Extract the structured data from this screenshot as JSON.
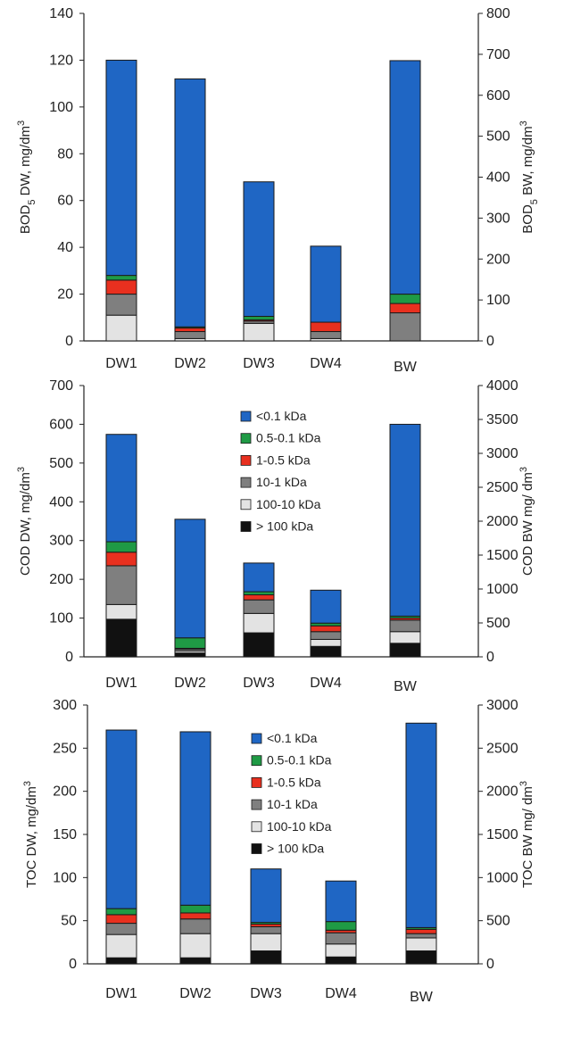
{
  "colors": {
    "gt100": "#111111",
    "k100_10": "#e3e3e3",
    "k10_1": "#7f7f7f",
    "k1_05": "#e8301f",
    "k05_01": "#1f9a45",
    "lt01": "#1f66c4",
    "outline": "#1a1a1a"
  },
  "legend_labels": [
    "<0.1 kDa",
    "0.5-0.1 kDa",
    "1-0.5 kDa",
    "10-1 kDa",
    "100-10 kDa",
    "> 100 kDa"
  ],
  "chart_data": [
    {
      "type": "bar",
      "stacked": true,
      "title": "",
      "categories": [
        "DW1",
        "DW2",
        "DW3",
        "DW4",
        "BW"
      ],
      "ylabel_left": {
        "main": "BOD",
        "sub": "5",
        "rest": " DW, mg/dm",
        "sup": "3"
      },
      "ylabel_right": {
        "main": "BOD",
        "sub": "5",
        "rest": " BW, mg/dm",
        "sup": "3"
      },
      "ylim_left": [
        0,
        140
      ],
      "yticks_left": [
        0,
        20,
        40,
        60,
        80,
        100,
        120,
        140
      ],
      "ylim_right": [
        0,
        800
      ],
      "yticks_right": [
        0,
        100,
        200,
        300,
        400,
        500,
        600,
        700,
        800
      ],
      "legend": false,
      "series": [
        {
          "key": "gt100",
          "values": [
            0,
            0,
            0,
            0,
            0
          ]
        },
        {
          "key": "k100_10",
          "values": [
            11,
            1,
            7.5,
            1,
            0
          ]
        },
        {
          "key": "k10_1",
          "values": [
            9,
            3,
            1,
            3,
            12
          ]
        },
        {
          "key": "k1_05",
          "values": [
            6,
            1.5,
            0.5,
            4,
            4
          ]
        },
        {
          "key": "k05_01",
          "values": [
            2,
            0.5,
            1.5,
            0,
            4
          ]
        },
        {
          "key": "lt01",
          "values": [
            92,
            106,
            57.5,
            32.5,
            99.8
          ]
        }
      ]
    },
    {
      "type": "bar",
      "stacked": true,
      "title": "",
      "categories": [
        "DW1",
        "DW2",
        "DW3",
        "DW4",
        "BW"
      ],
      "ylabel_left": {
        "main": "COD DW, mg/dm",
        "sup": "3"
      },
      "ylabel_right": {
        "main": "COD BW mg/ dm",
        "sup": "3"
      },
      "ylim_left": [
        0,
        700
      ],
      "yticks_left": [
        0,
        100,
        200,
        300,
        400,
        500,
        600,
        700
      ],
      "ylim_right": [
        0,
        4000
      ],
      "yticks_right": [
        0,
        500,
        1000,
        1500,
        2000,
        2500,
        3000,
        3500,
        4000
      ],
      "legend": true,
      "series": [
        {
          "key": "gt100",
          "values": [
            97,
            10,
            62,
            27,
            35
          ]
        },
        {
          "key": "k100_10",
          "values": [
            38,
            5,
            50,
            18,
            30
          ]
        },
        {
          "key": "k10_1",
          "values": [
            100,
            5,
            35,
            20,
            30
          ]
        },
        {
          "key": "k1_05",
          "values": [
            35,
            2,
            13,
            15,
            5
          ]
        },
        {
          "key": "k05_01",
          "values": [
            27,
            27,
            8,
            7,
            5
          ]
        },
        {
          "key": "lt01",
          "values": [
            277,
            306,
            74,
            85,
            495
          ]
        }
      ]
    },
    {
      "type": "bar",
      "stacked": true,
      "title": "",
      "categories": [
        "DW1",
        "DW2",
        "DW3",
        "DW4",
        "BW"
      ],
      "ylabel_left": {
        "main": "TOC DW, mg/dm",
        "sup": "3"
      },
      "ylabel_right": {
        "main": "TOC BW mg/ dm",
        "sup": "3"
      },
      "ylim_left": [
        0,
        300
      ],
      "yticks_left": [
        0,
        50,
        100,
        150,
        200,
        250,
        300
      ],
      "ylim_right": [
        0,
        3000
      ],
      "yticks_right": [
        0,
        500,
        1000,
        1500,
        2000,
        2500,
        3000
      ],
      "legend": true,
      "series": [
        {
          "key": "gt100",
          "values": [
            7,
            7,
            15,
            8,
            15
          ]
        },
        {
          "key": "k100_10",
          "values": [
            27,
            28,
            20,
            15,
            15
          ]
        },
        {
          "key": "k10_1",
          "values": [
            13,
            17,
            8,
            13,
            5
          ]
        },
        {
          "key": "k1_05",
          "values": [
            10,
            7,
            3,
            3,
            5
          ]
        },
        {
          "key": "k05_01",
          "values": [
            7,
            9,
            2,
            10,
            2
          ]
        },
        {
          "key": "lt01",
          "values": [
            207,
            201,
            62,
            47,
            237
          ]
        }
      ]
    }
  ]
}
